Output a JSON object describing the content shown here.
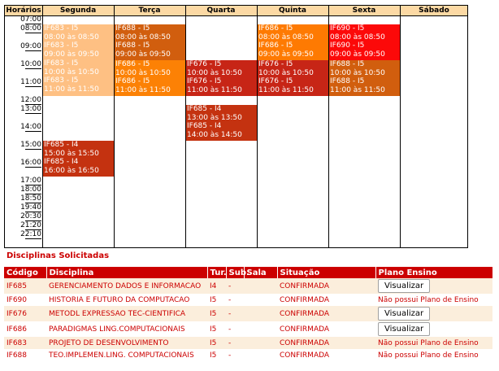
{
  "schedule": {
    "time_header": "Horários",
    "days": [
      "Segunda",
      "Terça",
      "Quarta",
      "Quinta",
      "Sexta",
      "Sábado"
    ],
    "times": [
      "07:00",
      "08:00",
      "09:00",
      "10:00",
      "11:00",
      "12:00",
      "13:00",
      "14:00",
      "15:00",
      "16:00",
      "17:00",
      "18:00",
      "18:50",
      "19:40",
      "20:30",
      "21:20",
      "22:10"
    ],
    "blocks": [
      {
        "day": 0,
        "color": "#fec083",
        "lines": [
          "IF683 - I5",
          "08:00 às 08:50",
          "IF683 - I5",
          "09:00 às 09:50",
          "IF683 - I5",
          "10:00 às 10:50",
          "IF683 - I5",
          "11:00 às 11:50"
        ]
      },
      {
        "day": 1,
        "color": "#d15e0e",
        "lines": [
          "IF688 - I5",
          "08:00 às 08:50",
          "IF688 - I5",
          "09:00 às 09:50"
        ]
      },
      {
        "day": 1,
        "color": "#fc8105",
        "lines": [
          "IF686 - I5",
          "10:00 às 10:50",
          "IF686 - I5",
          "11:00 às 11:50"
        ]
      },
      {
        "day": 2,
        "color": "#c72516",
        "lines": [
          "IF676 - I5",
          "10:00 às 10:50",
          "IF676 - I5",
          "11:00 às 11:50"
        ]
      },
      {
        "day": 2,
        "color": "#c43210",
        "lines": [
          "IF685 - I4",
          "13:00 às 13:50",
          "IF685 - I4",
          "14:00 às 14:50"
        ]
      },
      {
        "day": 3,
        "color": "#fe7a02",
        "lines": [
          "IF686 - I5",
          "08:00 às 08:50",
          "IF686 - I5",
          "09:00 às 09:50"
        ]
      },
      {
        "day": 3,
        "color": "#c72516",
        "lines": [
          "IF676 - I5",
          "10:00 às 10:50",
          "IF676 - I5",
          "11:00 às 11:50"
        ]
      },
      {
        "day": 4,
        "color": "#fc0909",
        "lines": [
          "IF690 - I5",
          "08:00 às 08:50",
          "IF690 - I5",
          "09:00 às 09:50"
        ]
      },
      {
        "day": 4,
        "color": "#d15e0e",
        "lines": [
          "IF688 - I5",
          "10:00 às 10:50",
          "IF688 - I5",
          "11:00 às 11:50"
        ]
      },
      {
        "day": 0,
        "color": "#c43210",
        "lines": [
          "IF685 - I4",
          "15:00 às 15:50",
          "IF685 - I4",
          "16:00 às 16:50"
        ]
      }
    ]
  },
  "courses": {
    "title": "Disciplinas Solicitadas",
    "headers": [
      "Código",
      "Disciplina",
      "Tur.",
      "Sub.",
      "Sala",
      "Situação",
      "Plano Ensino"
    ],
    "rows": [
      {
        "code": "IF685",
        "name": "GERENCIAMENTO DADOS E INFORMACAO",
        "turma": "I4",
        "sub": "-",
        "sala": "",
        "status": "CONFIRMADA",
        "plan": "Visualizar",
        "plan_is_button": true
      },
      {
        "code": "IF690",
        "name": "HISTORIA E FUTURO DA COMPUTACAO",
        "turma": "I5",
        "sub": "-",
        "sala": "",
        "status": "CONFIRMADA",
        "plan": "Não possui Plano de Ensino",
        "plan_is_button": false
      },
      {
        "code": "IF676",
        "name": "METODL EXPRESSAO TEC-CIENTIFICA",
        "turma": "I5",
        "sub": "-",
        "sala": "",
        "status": "CONFIRMADA",
        "plan": "Visualizar",
        "plan_is_button": true
      },
      {
        "code": "IF686",
        "name": "PARADIGMAS LING.COMPUTACIONAIS",
        "turma": "I5",
        "sub": "-",
        "sala": "",
        "status": "CONFIRMADA",
        "plan": "Visualizar",
        "plan_is_button": true
      },
      {
        "code": "IF683",
        "name": "PROJETO DE DESENVOLVIMENTO",
        "turma": "I5",
        "sub": "-",
        "sala": "",
        "status": "CONFIRMADA",
        "plan": "Não possui Plano de Ensino",
        "plan_is_button": false
      },
      {
        "code": "IF688",
        "name": "TEO.IMPLEMEN.LING. COMPUTACIONAIS",
        "turma": "I5",
        "sub": "-",
        "sala": "",
        "status": "CONFIRMADA",
        "plan": "Não possui Plano de Ensino",
        "plan_is_button": false
      }
    ]
  }
}
